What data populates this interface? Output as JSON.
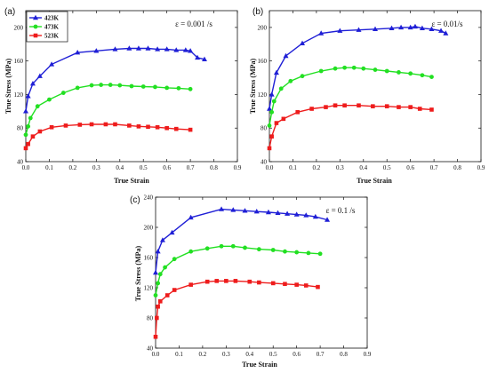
{
  "chart_data": [
    {
      "type": "line",
      "panel_label": "(a)",
      "annotation": "ε = 0.001 /s",
      "xlabel": "True Strain",
      "ylabel": "True Stress (MPa)",
      "xlim": [
        0.0,
        0.9
      ],
      "ylim": [
        40,
        220
      ],
      "xticks": [
        "0.0",
        "0.1",
        "0.2",
        "0.3",
        "0.4",
        "0.5",
        "0.6",
        "0.7",
        "0.8",
        "0.9"
      ],
      "yticks": [
        "40",
        "80",
        "120",
        "160",
        "200"
      ],
      "legend": "top-left",
      "series": [
        {
          "name": "423K",
          "color": "#1f1fd6",
          "marker": "triangle",
          "x": [
            0.0,
            0.01,
            0.03,
            0.06,
            0.11,
            0.22,
            0.3,
            0.38,
            0.44,
            0.48,
            0.52,
            0.56,
            0.6,
            0.64,
            0.68,
            0.7,
            0.73,
            0.76
          ],
          "y": [
            100,
            118,
            133,
            142,
            156,
            170,
            172,
            174,
            175,
            175,
            175,
            174,
            174,
            173,
            173,
            172,
            164,
            162
          ]
        },
        {
          "name": "473K",
          "color": "#22e022",
          "marker": "circle",
          "x": [
            0.0,
            0.01,
            0.02,
            0.05,
            0.1,
            0.16,
            0.22,
            0.28,
            0.32,
            0.36,
            0.4,
            0.45,
            0.5,
            0.55,
            0.6,
            0.65,
            0.7
          ],
          "y": [
            72,
            82,
            92,
            106,
            114,
            122,
            128,
            131,
            131.5,
            131.5,
            131,
            130,
            129.5,
            129,
            128,
            127.5,
            126.5
          ]
        },
        {
          "name": "523K",
          "color": "#ee1c1c",
          "marker": "square",
          "x": [
            0.0,
            0.01,
            0.03,
            0.06,
            0.11,
            0.17,
            0.23,
            0.28,
            0.34,
            0.38,
            0.44,
            0.48,
            0.52,
            0.56,
            0.6,
            0.64,
            0.7
          ],
          "y": [
            56,
            61,
            70,
            76,
            81,
            83,
            84,
            84.5,
            84.5,
            84.5,
            83,
            82,
            81.5,
            81,
            80,
            79,
            78
          ]
        }
      ]
    },
    {
      "type": "line",
      "panel_label": "(b)",
      "annotation": "ε = 0.01/s",
      "xlabel": "True Strain",
      "ylabel": "True Stress (MPa)",
      "xlim": [
        0.0,
        0.9
      ],
      "ylim": [
        40,
        220
      ],
      "xticks": [
        "0.0",
        "0.1",
        "0.2",
        "0.3",
        "0.4",
        "0.5",
        "0.6",
        "0.7",
        "0.8",
        "0.9"
      ],
      "yticks": [
        "40",
        "80",
        "120",
        "160",
        "200"
      ],
      "series": [
        {
          "color": "#1f1fd6",
          "marker": "triangle",
          "x": [
            0.0,
            0.01,
            0.03,
            0.07,
            0.14,
            0.22,
            0.3,
            0.38,
            0.45,
            0.52,
            0.56,
            0.6,
            0.62,
            0.65,
            0.69,
            0.73,
            0.75
          ],
          "y": [
            103,
            120,
            146,
            166,
            181,
            193,
            196,
            197,
            198,
            199,
            200,
            200,
            201,
            199,
            198,
            196,
            193
          ]
        },
        {
          "color": "#22e022",
          "marker": "circle",
          "x": [
            0.0,
            0.01,
            0.02,
            0.05,
            0.09,
            0.14,
            0.22,
            0.28,
            0.32,
            0.36,
            0.4,
            0.45,
            0.5,
            0.55,
            0.6,
            0.65,
            0.69
          ],
          "y": [
            83,
            99,
            112,
            127,
            136,
            142,
            148,
            151,
            152,
            152,
            151,
            149.5,
            148,
            146.5,
            145,
            143,
            141
          ]
        },
        {
          "color": "#ee1c1c",
          "marker": "square",
          "x": [
            0.0,
            0.01,
            0.03,
            0.06,
            0.12,
            0.18,
            0.24,
            0.28,
            0.32,
            0.38,
            0.44,
            0.5,
            0.55,
            0.6,
            0.64,
            0.69
          ],
          "y": [
            56,
            70,
            86,
            91,
            99,
            103,
            105,
            107,
            107,
            107,
            106,
            106,
            105,
            105,
            103,
            102
          ]
        }
      ]
    },
    {
      "type": "line",
      "panel_label": "(c)",
      "annotation": "ε = 0.1 /s",
      "xlabel": "True Strain",
      "ylabel": "True Stress (MPa)",
      "xlim": [
        0.0,
        0.9
      ],
      "ylim": [
        40,
        240
      ],
      "xticks": [
        "0.0",
        "0.1",
        "0.2",
        "0.3",
        "0.4",
        "0.5",
        "0.6",
        "0.7",
        "0.8",
        "0.9"
      ],
      "yticks": [
        "40",
        "80",
        "120",
        "160",
        "200",
        "240"
      ],
      "series": [
        {
          "color": "#1f1fd6",
          "marker": "triangle",
          "x": [
            0.0,
            0.01,
            0.03,
            0.07,
            0.15,
            0.28,
            0.33,
            0.38,
            0.43,
            0.48,
            0.52,
            0.56,
            0.6,
            0.64,
            0.68,
            0.73
          ],
          "y": [
            140,
            168,
            183,
            193,
            213,
            224,
            223,
            222,
            221,
            220,
            219,
            218,
            217,
            216,
            214,
            210
          ]
        },
        {
          "color": "#22e022",
          "marker": "circle",
          "x": [
            0.0,
            0.01,
            0.02,
            0.04,
            0.08,
            0.15,
            0.22,
            0.28,
            0.33,
            0.38,
            0.44,
            0.5,
            0.55,
            0.6,
            0.65,
            0.7
          ],
          "y": [
            110,
            126,
            138,
            147,
            158,
            168,
            172,
            175,
            175,
            173,
            171,
            170,
            168,
            167,
            166,
            165
          ]
        },
        {
          "color": "#ee1c1c",
          "marker": "square",
          "x": [
            0.0,
            0.005,
            0.01,
            0.02,
            0.05,
            0.08,
            0.15,
            0.22,
            0.26,
            0.3,
            0.34,
            0.4,
            0.44,
            0.5,
            0.55,
            0.6,
            0.64,
            0.69
          ],
          "y": [
            55,
            80,
            95,
            102,
            110,
            117,
            124,
            128,
            129,
            129,
            129,
            128,
            127,
            126,
            125,
            124,
            123,
            121
          ]
        }
      ]
    }
  ]
}
